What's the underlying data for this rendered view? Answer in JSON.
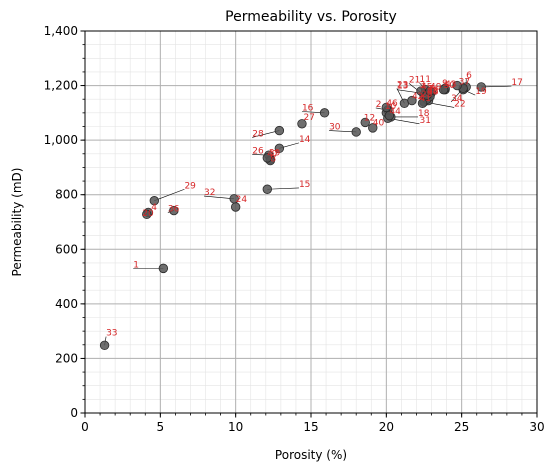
{
  "chart_data": {
    "type": "scatter",
    "title": "Permeability vs. Porosity",
    "xlabel": "Porosity (%)",
    "ylabel": "Permeability (mD)",
    "xlim": [
      0,
      30
    ],
    "ylim": [
      0,
      1400
    ],
    "x_ticks": [
      "0",
      "5",
      "10",
      "15",
      "20",
      "25",
      "30"
    ],
    "y_ticks": [
      "0",
      "200",
      "400",
      "600",
      "800",
      "1,000",
      "1,200",
      "1,400"
    ],
    "grid": {
      "major": true,
      "minor": true
    },
    "colors": {
      "point": "#555555",
      "label": "#d62728",
      "leader": "#000000",
      "grid_major": "#b0b0b0",
      "grid_minor": "#e4e4e4"
    },
    "points": [
      {
        "label": "1",
        "x": 5.2,
        "y": 530,
        "lx": 3.2,
        "ly": 530
      },
      {
        "label": "2",
        "x": 20.1,
        "y": 1110,
        "lx": 19.3,
        "ly": 1118
      },
      {
        "label": "3",
        "x": 23.0,
        "y": 1175,
        "lx": 22.2,
        "ly": 1190
      },
      {
        "label": "4",
        "x": 4.2,
        "y": 735,
        "lx": 4.4,
        "ly": 740
      },
      {
        "label": "6",
        "x": 25.3,
        "y": 1195,
        "lx": 25.3,
        "ly": 1225
      },
      {
        "label": "7",
        "x": 22.9,
        "y": 1170,
        "lx": 22.8,
        "ly": 1175
      },
      {
        "label": "8",
        "x": 12.3,
        "y": 930,
        "lx": 12.3,
        "ly": 918
      },
      {
        "label": "9",
        "x": 23.9,
        "y": 1185,
        "lx": 23.7,
        "ly": 1195
      },
      {
        "label": "10",
        "x": 20.0,
        "y": 1100,
        "lx": 19.9,
        "ly": 1110
      },
      {
        "label": "11",
        "x": 22.6,
        "y": 1185,
        "lx": 22.2,
        "ly": 1210
      },
      {
        "label": "12",
        "x": 18.6,
        "y": 1065,
        "lx": 18.5,
        "ly": 1068
      },
      {
        "label": "13",
        "x": 22.6,
        "y": 1170,
        "lx": 20.7,
        "ly": 1185
      },
      {
        "label": "14",
        "x": 12.9,
        "y": 970,
        "lx": 14.2,
        "ly": 990
      },
      {
        "label": "15",
        "x": 12.1,
        "y": 820,
        "lx": 14.2,
        "ly": 825
      },
      {
        "label": "16",
        "x": 15.9,
        "y": 1100,
        "lx": 14.4,
        "ly": 1105
      },
      {
        "label": "17",
        "x": 26.3,
        "y": 1195,
        "lx": 28.3,
        "ly": 1198
      },
      {
        "label": "18",
        "x": 20.3,
        "y": 1085,
        "lx": 22.1,
        "ly": 1085
      },
      {
        "label": "19",
        "x": 25.1,
        "y": 1185,
        "lx": 25.9,
        "ly": 1165
      },
      {
        "label": "20",
        "x": 4.1,
        "y": 728,
        "lx": 3.8,
        "ly": 718
      },
      {
        "label": "21",
        "x": 22.5,
        "y": 1165,
        "lx": 21.5,
        "ly": 1208
      },
      {
        "label": "22",
        "x": 22.5,
        "y": 1140,
        "lx": 24.5,
        "ly": 1120
      },
      {
        "label": "23",
        "x": 21.2,
        "y": 1135,
        "lx": 20.7,
        "ly": 1190
      },
      {
        "label": "24",
        "x": 10.0,
        "y": 755,
        "lx": 10.0,
        "ly": 770
      },
      {
        "label": "25",
        "x": 22.8,
        "y": 1145,
        "lx": 22.3,
        "ly": 1155
      },
      {
        "label": "26",
        "x": 12.2,
        "y": 945,
        "lx": 11.1,
        "ly": 948
      },
      {
        "label": "27",
        "x": 14.4,
        "y": 1060,
        "lx": 14.5,
        "ly": 1070
      },
      {
        "label": "28",
        "x": 12.9,
        "y": 1035,
        "lx": 11.1,
        "ly": 1010
      },
      {
        "label": "29",
        "x": 4.6,
        "y": 778,
        "lx": 6.6,
        "ly": 820
      },
      {
        "label": "30",
        "x": 18.0,
        "y": 1030,
        "lx": 16.2,
        "ly": 1035
      },
      {
        "label": "31",
        "x": 20.1,
        "y": 1080,
        "lx": 22.2,
        "ly": 1060
      },
      {
        "label": "32",
        "x": 9.9,
        "y": 785,
        "lx": 7.9,
        "ly": 795
      },
      {
        "label": "33",
        "x": 1.3,
        "y": 248,
        "lx": 1.4,
        "ly": 280
      },
      {
        "label": "34",
        "x": 25.1,
        "y": 1190,
        "lx": 24.3,
        "ly": 1140
      },
      {
        "label": "35",
        "x": 22.7,
        "y": 1150,
        "lx": 22.7,
        "ly": 1170
      },
      {
        "label": "36",
        "x": 5.9,
        "y": 742,
        "lx": 5.5,
        "ly": 735
      },
      {
        "label": "37",
        "x": 24.7,
        "y": 1200,
        "lx": 24.8,
        "ly": 1200
      },
      {
        "label": "38",
        "x": 22.9,
        "y": 1160,
        "lx": 22.7,
        "ly": 1163
      },
      {
        "label": "39",
        "x": 12.3,
        "y": 925,
        "lx": 12.2,
        "ly": 940
      },
      {
        "label": "40",
        "x": 19.1,
        "y": 1045,
        "lx": 19.1,
        "ly": 1050
      },
      {
        "label": "41",
        "x": 22.4,
        "y": 1135,
        "lx": 22.2,
        "ly": 1140
      },
      {
        "label": "42",
        "x": 21.7,
        "y": 1145,
        "lx": 21.7,
        "ly": 1148
      },
      {
        "label": "43",
        "x": 23.9,
        "y": 1190,
        "lx": 23.9,
        "ly": 1192
      },
      {
        "label": "44",
        "x": 20.2,
        "y": 1090,
        "lx": 20.2,
        "ly": 1092
      },
      {
        "label": "45",
        "x": 22.3,
        "y": 1180,
        "lx": 22.3,
        "ly": 1182
      },
      {
        "label": "46",
        "x": 20.0,
        "y": 1120,
        "lx": 20.0,
        "ly": 1122
      },
      {
        "label": "47",
        "x": 12.1,
        "y": 935,
        "lx": 12.1,
        "ly": 937
      },
      {
        "label": "48",
        "x": 22.7,
        "y": 1165,
        "lx": 22.7,
        "ly": 1167
      },
      {
        "label": "49",
        "x": 22.9,
        "y": 1180,
        "lx": 22.9,
        "ly": 1182
      },
      {
        "label": "50",
        "x": 23.8,
        "y": 1185,
        "lx": 23.8,
        "ly": 1187
      }
    ]
  }
}
